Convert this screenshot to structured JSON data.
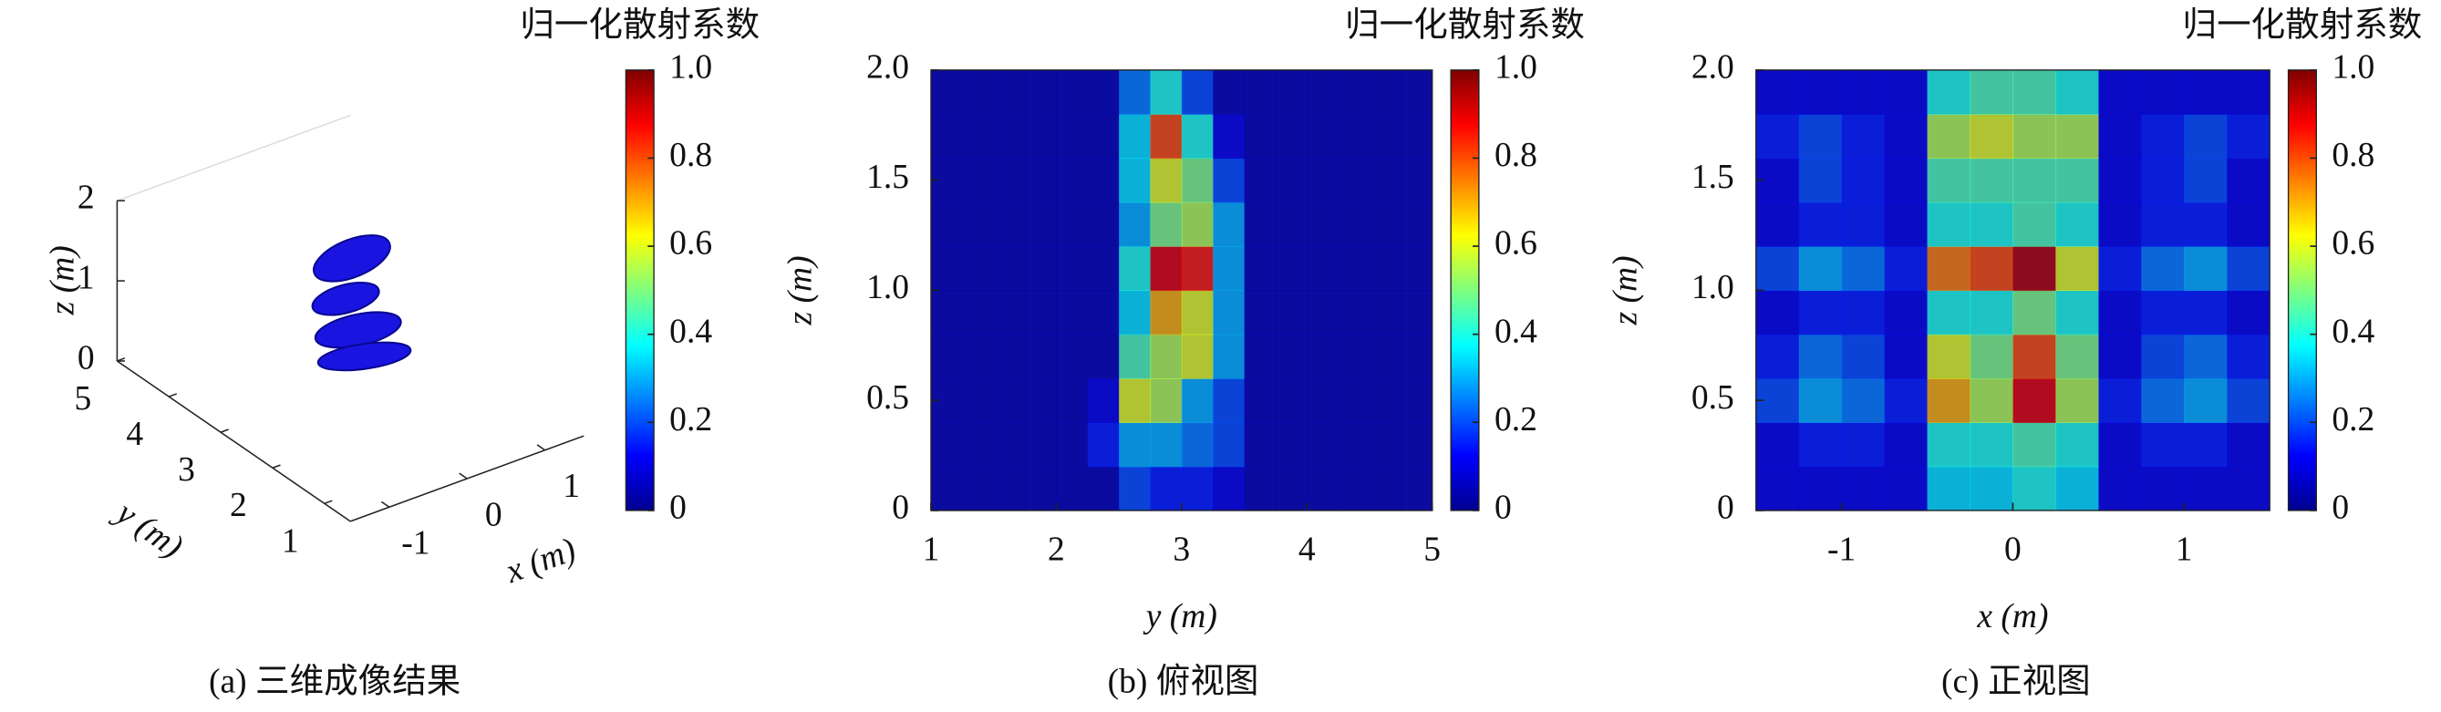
{
  "chart_data": [
    {
      "type": "isosurface3d",
      "caption": "(a) 三维成像结果",
      "xlabel": "x (m)",
      "ylabel": "y (m)",
      "zlabel": "z (m)",
      "xlim": [
        -1.5,
        1.5
      ],
      "ylim": [
        0.5,
        5
      ],
      "zlim": [
        0,
        2
      ],
      "xticks": [
        -1,
        0,
        1
      ],
      "yticks": [
        1,
        2,
        3,
        4,
        5
      ],
      "zticks": [
        0,
        1,
        2
      ],
      "color": "#1a14e0",
      "colorbar": {
        "label": "归一化散射系数",
        "clim": [
          0,
          1
        ],
        "colormap": "jet",
        "ticks": [
          0,
          0.2,
          0.4,
          0.6,
          0.8,
          {
            "value": 1,
            "label": "1.0"
          }
        ]
      }
    },
    {
      "type": "heatmap",
      "caption": "(b) 俯视图",
      "xlabel": "y (m)",
      "ylabel": "z (m)",
      "xlim": [
        1,
        5
      ],
      "ylim": [
        0,
        2
      ],
      "xticks": [
        1,
        2,
        3,
        4,
        5
      ],
      "yticks": [
        0,
        0.5,
        {
          "value": 1,
          "label": "1.0"
        },
        1.5,
        {
          "value": 2,
          "label": "2.0"
        }
      ],
      "values": [
        [
          0.05,
          0.05,
          0.05,
          0.05,
          0.05,
          0.05,
          0.2,
          0.15,
          0.15,
          0.1,
          0.05,
          0.05,
          0.05,
          0.05,
          0.05,
          0.05
        ],
        [
          0.05,
          0.05,
          0.05,
          0.05,
          0.05,
          0.15,
          0.3,
          0.3,
          0.25,
          0.2,
          0.05,
          0.05,
          0.05,
          0.05,
          0.05,
          0.05
        ],
        [
          0.05,
          0.05,
          0.05,
          0.05,
          0.05,
          0.1,
          0.6,
          0.55,
          0.3,
          0.2,
          0.05,
          0.05,
          0.05,
          0.05,
          0.05,
          0.05
        ],
        [
          0.05,
          0.05,
          0.05,
          0.05,
          0.05,
          0.05,
          0.45,
          0.55,
          0.6,
          0.3,
          0.05,
          0.05,
          0.05,
          0.05,
          0.05,
          0.05
        ],
        [
          0.05,
          0.05,
          0.05,
          0.05,
          0.05,
          0.05,
          0.35,
          0.7,
          0.6,
          0.3,
          0.05,
          0.05,
          0.05,
          0.05,
          0.05,
          0.05
        ],
        [
          0.05,
          0.05,
          0.05,
          0.05,
          0.05,
          0.05,
          0.4,
          0.9,
          0.85,
          0.3,
          0.05,
          0.05,
          0.05,
          0.05,
          0.05,
          0.05
        ],
        [
          0.05,
          0.05,
          0.05,
          0.05,
          0.05,
          0.05,
          0.3,
          0.5,
          0.55,
          0.3,
          0.05,
          0.05,
          0.05,
          0.05,
          0.05,
          0.05
        ],
        [
          0.05,
          0.05,
          0.05,
          0.05,
          0.05,
          0.05,
          0.35,
          0.6,
          0.5,
          0.2,
          0.05,
          0.05,
          0.05,
          0.05,
          0.05,
          0.05
        ],
        [
          0.05,
          0.05,
          0.05,
          0.05,
          0.05,
          0.05,
          0.35,
          0.8,
          0.4,
          0.1,
          0.05,
          0.05,
          0.05,
          0.05,
          0.05,
          0.05
        ],
        [
          0.05,
          0.05,
          0.05,
          0.05,
          0.05,
          0.05,
          0.25,
          0.4,
          0.2,
          0.05,
          0.05,
          0.05,
          0.05,
          0.05,
          0.05,
          0.05
        ]
      ],
      "colorbar": {
        "label": "归一化散射系数",
        "clim": [
          0,
          1
        ],
        "colormap": "jet",
        "ticks": [
          0,
          0.2,
          0.4,
          0.6,
          0.8,
          {
            "value": 1,
            "label": "1.0"
          }
        ]
      }
    },
    {
      "type": "heatmap",
      "caption": "(c) 正视图",
      "xlabel": "x (m)",
      "ylabel": "z (m)",
      "xlim": [
        -1.5,
        1.5
      ],
      "ylim": [
        0,
        2
      ],
      "xticks": [
        -1,
        0,
        1
      ],
      "yticks": [
        0,
        0.5,
        {
          "value": 1,
          "label": "1.0"
        },
        1.5,
        {
          "value": 2,
          "label": "2.0"
        }
      ],
      "values": [
        [
          0.1,
          0.1,
          0.1,
          0.1,
          0.35,
          0.35,
          0.4,
          0.35,
          0.1,
          0.1,
          0.1,
          0.1
        ],
        [
          0.1,
          0.15,
          0.15,
          0.1,
          0.4,
          0.4,
          0.45,
          0.4,
          0.1,
          0.15,
          0.15,
          0.1
        ],
        [
          0.2,
          0.3,
          0.25,
          0.15,
          0.7,
          0.55,
          0.9,
          0.55,
          0.15,
          0.25,
          0.3,
          0.2
        ],
        [
          0.15,
          0.25,
          0.2,
          0.1,
          0.6,
          0.5,
          0.8,
          0.5,
          0.1,
          0.2,
          0.25,
          0.15
        ],
        [
          0.1,
          0.15,
          0.15,
          0.1,
          0.4,
          0.4,
          0.5,
          0.4,
          0.1,
          0.15,
          0.15,
          0.1
        ],
        [
          0.2,
          0.3,
          0.25,
          0.15,
          0.75,
          0.8,
          0.95,
          0.6,
          0.15,
          0.25,
          0.3,
          0.2
        ],
        [
          0.1,
          0.15,
          0.15,
          0.1,
          0.4,
          0.4,
          0.45,
          0.4,
          0.1,
          0.15,
          0.15,
          0.1
        ],
        [
          0.1,
          0.2,
          0.15,
          0.1,
          0.45,
          0.45,
          0.45,
          0.45,
          0.1,
          0.15,
          0.2,
          0.1
        ],
        [
          0.15,
          0.2,
          0.15,
          0.1,
          0.55,
          0.6,
          0.55,
          0.55,
          0.1,
          0.15,
          0.2,
          0.15
        ],
        [
          0.1,
          0.1,
          0.1,
          0.1,
          0.4,
          0.45,
          0.45,
          0.4,
          0.1,
          0.1,
          0.1,
          0.1
        ]
      ],
      "colorbar": {
        "label": "归一化散射系数",
        "clim": [
          0,
          1
        ],
        "colormap": "jet",
        "ticks": [
          0,
          0.2,
          0.4,
          0.6,
          0.8,
          {
            "value": 1,
            "label": "1.0"
          }
        ]
      }
    }
  ]
}
